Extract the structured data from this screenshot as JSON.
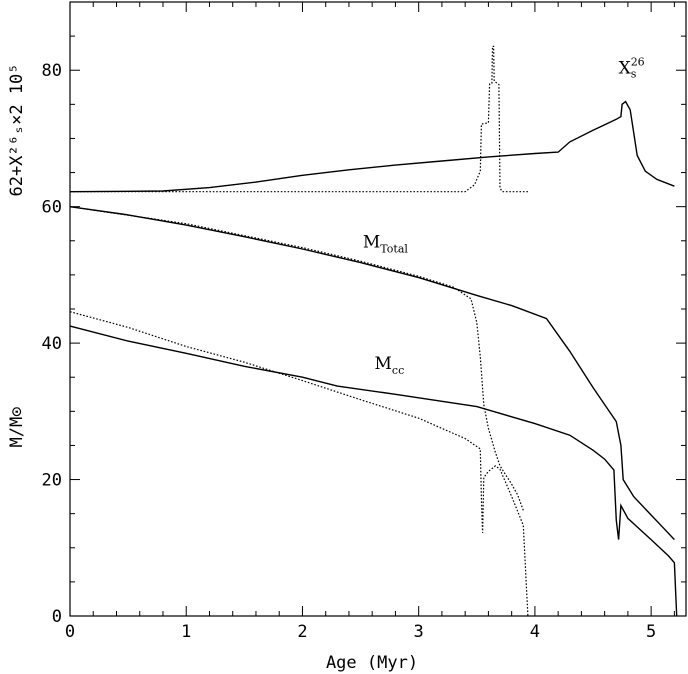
{
  "chart_data": {
    "type": "line",
    "xlabel": "Age (Myr)",
    "ylabel": "M/M⊙",
    "ylabel_upper": "62+X²⁶ₛ×2 10⁵",
    "xlim": [
      0,
      5.3
    ],
    "ylim": [
      0,
      90
    ],
    "x_ticks": [
      0,
      1,
      2,
      3,
      4,
      5
    ],
    "y_ticks": [
      0,
      20,
      40,
      60,
      80
    ],
    "grid": false,
    "annotations": [
      {
        "text": "X",
        "sup": "26",
        "sub": "s",
        "x": 4.72,
        "y": 79.5
      },
      {
        "text": "M",
        "sub": "Total",
        "x": 2.52,
        "y": 54.0
      },
      {
        "text": "M",
        "sub": "cc",
        "x": 2.62,
        "y": 36.2
      }
    ],
    "series": [
      {
        "style": "solid",
        "points": [
          [
            0,
            62.2
          ],
          [
            0.8,
            62.3
          ],
          [
            1.2,
            62.8
          ],
          [
            1.6,
            63.6
          ],
          [
            2.0,
            64.6
          ],
          [
            2.4,
            65.4
          ],
          [
            2.8,
            66.1
          ],
          [
            3.2,
            66.7
          ],
          [
            3.6,
            67.3
          ],
          [
            4.0,
            67.8
          ],
          [
            4.2,
            68.0
          ],
          [
            4.3,
            69.5
          ],
          [
            4.5,
            71.2
          ],
          [
            4.7,
            72.8
          ],
          [
            4.74,
            73.2
          ],
          [
            4.75,
            75.0
          ],
          [
            4.78,
            75.4
          ],
          [
            4.82,
            74.2
          ],
          [
            4.88,
            67.5
          ],
          [
            4.95,
            65.2
          ],
          [
            5.05,
            64.0
          ],
          [
            5.2,
            63.0
          ]
        ]
      },
      {
        "style": "dotted",
        "points": [
          [
            0,
            62.2
          ],
          [
            3.4,
            62.2
          ],
          [
            3.48,
            63.2
          ],
          [
            3.53,
            65.2
          ],
          [
            3.54,
            72.1
          ],
          [
            3.6,
            72.3
          ],
          [
            3.61,
            78.0
          ],
          [
            3.63,
            78.1
          ],
          [
            3.635,
            83.5
          ],
          [
            3.645,
            83.5
          ],
          [
            3.65,
            78.4
          ],
          [
            3.69,
            77.9
          ],
          [
            3.7,
            62.7
          ],
          [
            3.72,
            62.2
          ],
          [
            3.95,
            62.2
          ]
        ]
      },
      {
        "style": "solid",
        "points": [
          [
            0,
            60.0
          ],
          [
            0.5,
            58.8
          ],
          [
            1.0,
            57.3
          ],
          [
            1.5,
            55.6
          ],
          [
            2.0,
            53.8
          ],
          [
            2.5,
            51.8
          ],
          [
            3.0,
            49.6
          ],
          [
            3.5,
            47.0
          ],
          [
            3.8,
            45.5
          ],
          [
            4.1,
            43.6
          ],
          [
            4.3,
            38.8
          ],
          [
            4.5,
            33.5
          ],
          [
            4.6,
            31.0
          ],
          [
            4.7,
            28.5
          ],
          [
            4.74,
            25.0
          ],
          [
            4.76,
            20.0
          ],
          [
            4.85,
            17.5
          ],
          [
            5.0,
            14.8
          ],
          [
            5.1,
            13.0
          ],
          [
            5.2,
            11.2
          ]
        ]
      },
      {
        "style": "dotted",
        "points": [
          [
            0,
            60.0
          ],
          [
            1.0,
            57.5
          ],
          [
            2.0,
            54.0
          ],
          [
            2.5,
            52.0
          ],
          [
            3.0,
            49.8
          ],
          [
            3.3,
            48.2
          ],
          [
            3.45,
            46.5
          ],
          [
            3.5,
            43.0
          ],
          [
            3.53,
            38.0
          ],
          [
            3.56,
            31.0
          ],
          [
            3.6,
            27.5
          ],
          [
            3.66,
            24.0
          ],
          [
            3.7,
            22.0
          ],
          [
            3.8,
            19.3
          ],
          [
            3.85,
            17.8
          ],
          [
            3.9,
            15.5
          ]
        ]
      },
      {
        "style": "solid",
        "points": [
          [
            0,
            42.5
          ],
          [
            0.5,
            40.3
          ],
          [
            1.0,
            38.5
          ],
          [
            1.5,
            36.6
          ],
          [
            2.0,
            35.0
          ],
          [
            2.3,
            33.7
          ],
          [
            2.8,
            32.5
          ],
          [
            3.5,
            30.7
          ],
          [
            4.0,
            28.2
          ],
          [
            4.3,
            26.5
          ],
          [
            4.5,
            24.3
          ],
          [
            4.6,
            23.0
          ],
          [
            4.68,
            21.4
          ],
          [
            4.7,
            14.0
          ],
          [
            4.72,
            11.2
          ],
          [
            4.74,
            16.2
          ],
          [
            4.8,
            14.3
          ],
          [
            5.0,
            11.2
          ],
          [
            5.15,
            8.8
          ],
          [
            5.2,
            7.8
          ],
          [
            5.22,
            0.0
          ]
        ]
      },
      {
        "style": "dotted",
        "points": [
          [
            0,
            44.6
          ],
          [
            0.5,
            42.3
          ],
          [
            1.0,
            39.5
          ],
          [
            1.5,
            37.2
          ],
          [
            2.0,
            34.5
          ],
          [
            2.5,
            31.7
          ],
          [
            3.0,
            29.0
          ],
          [
            3.4,
            26.0
          ],
          [
            3.53,
            24.5
          ],
          [
            3.54,
            17.2
          ],
          [
            3.55,
            12.2
          ],
          [
            3.56,
            20.3
          ],
          [
            3.6,
            21.2
          ],
          [
            3.66,
            22.0
          ],
          [
            3.7,
            21.5
          ],
          [
            3.8,
            17.5
          ],
          [
            3.9,
            13.3
          ],
          [
            3.94,
            0.0
          ]
        ]
      }
    ]
  }
}
